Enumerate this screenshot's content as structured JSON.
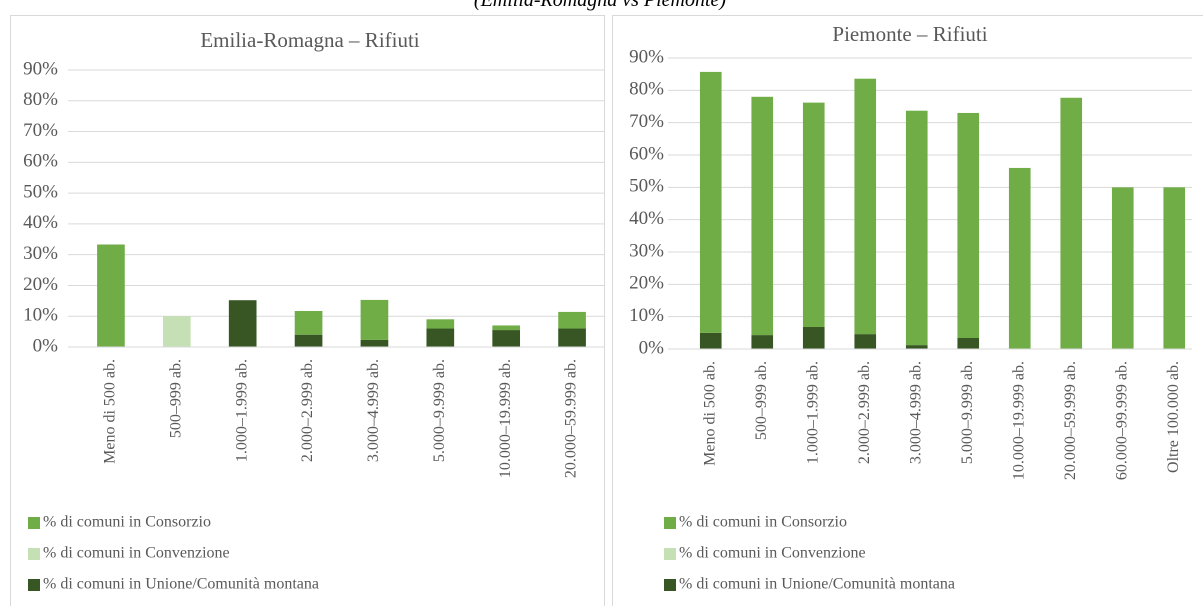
{
  "page_title": "(Emilia-Romagna vs Piemonte)",
  "chart_data": [
    {
      "type": "bar",
      "stacked": true,
      "title": "Emilia-Romagna – Rifiuti",
      "categories": [
        "Meno di 500 ab.",
        "500–999 ab.",
        "1.000–1.999 ab.",
        "2.000–2.999 ab.",
        "3.000–4.999 ab.",
        "5.000–9.999 ab.",
        "10.000–19.999 ab.",
        "20.000–59.999 ab."
      ],
      "series": [
        {
          "name": "% di comuni in Consorzio",
          "color": "#70ad47",
          "values": [
            33.3,
            0,
            0,
            7.7,
            13,
            3,
            1.5,
            5.4
          ]
        },
        {
          "name": "% di comuni in Convenzione",
          "color": "#c5e0b4",
          "values": [
            0,
            10,
            0,
            0,
            0,
            0,
            0,
            0
          ]
        },
        {
          "name": "% di comuni in Unione/Comunità montana",
          "color": "#375623",
          "values": [
            0,
            0,
            15.2,
            4,
            2.3,
            6,
            5.5,
            6
          ]
        }
      ],
      "ylim": [
        0,
        90
      ],
      "yticks": [
        {
          "value": 0,
          "label": "0%"
        },
        {
          "value": 10,
          "label": "10%"
        },
        {
          "value": 20,
          "label": "20%"
        },
        {
          "value": 30,
          "label": "30%"
        },
        {
          "value": 40,
          "label": "40%"
        },
        {
          "value": 50,
          "label": "50%"
        },
        {
          "value": 60,
          "label": "60%"
        },
        {
          "value": 70,
          "label": "70%"
        },
        {
          "value": 80,
          "label": "80%"
        },
        {
          "value": 90,
          "label": "90%"
        }
      ],
      "grid": true,
      "legend": "bottom-left"
    },
    {
      "type": "bar",
      "stacked": true,
      "title": "Piemonte – Rifiuti",
      "categories": [
        "Meno di 500 ab.",
        "500–999 ab.",
        "1.000–1.999 ab.",
        "2.000–2.999 ab.",
        "3.000–4.999 ab.",
        "5.000–9.999 ab.",
        "10.000–19.999 ab.",
        "20.000–59.999 ab.",
        "60.000–99.999 ab.",
        "Oltre 100.000 ab."
      ],
      "series": [
        {
          "name": "% di comuni in Consorzio",
          "color": "#70ad47",
          "values": [
            80.7,
            73.7,
            69.4,
            79,
            72.5,
            69.6,
            56,
            77.7,
            50,
            50
          ]
        },
        {
          "name": "% di comuni in Convenzione",
          "color": "#c5e0b4",
          "values": [
            0,
            0,
            0,
            0,
            0,
            0,
            0,
            0,
            0,
            0
          ]
        },
        {
          "name": "% di comuni in Unione/Comunità montana",
          "color": "#375623",
          "values": [
            5,
            4.3,
            6.8,
            4.6,
            1.2,
            3.4,
            0,
            0,
            0,
            0
          ]
        }
      ],
      "ylim": [
        0,
        90
      ],
      "yticks": [
        {
          "value": 0,
          "label": "0%"
        },
        {
          "value": 10,
          "label": "10%"
        },
        {
          "value": 20,
          "label": "20%"
        },
        {
          "value": 30,
          "label": "30%"
        },
        {
          "value": 40,
          "label": "40%"
        },
        {
          "value": 50,
          "label": "50%"
        },
        {
          "value": 60,
          "label": "60%"
        },
        {
          "value": 70,
          "label": "70%"
        },
        {
          "value": 80,
          "label": "80%"
        },
        {
          "value": 90,
          "label": "90%"
        }
      ],
      "grid": true,
      "legend": "bottom-left"
    }
  ]
}
